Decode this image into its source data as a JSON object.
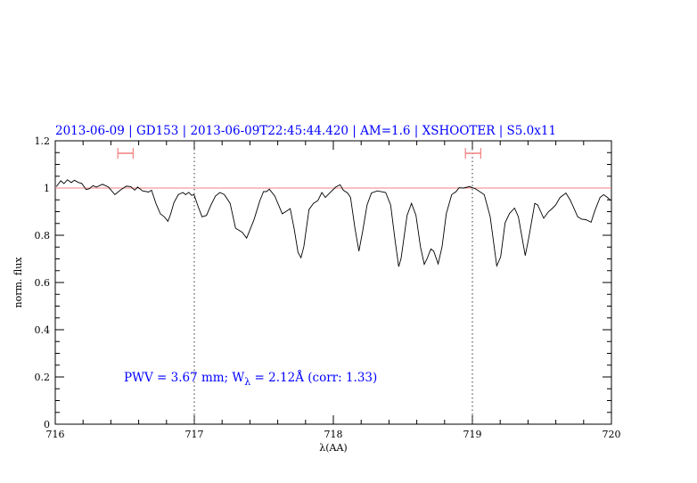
{
  "chart_data": {
    "type": "line",
    "title": "2013-06-09 | GD153 | 2013-06-09T22:45:44.420 | AM=1.6 | XSHOOTER | S5.0x11",
    "xlabel": "λ(AA)",
    "ylabel": "norm. flux",
    "xlim": [
      716,
      720
    ],
    "ylim": [
      0,
      1.2
    ],
    "x_ticks": [
      "716",
      "717",
      "718",
      "719",
      "720"
    ],
    "y_ticks": [
      "0",
      "0.2",
      "0.4",
      "0.6",
      "0.8",
      "1",
      "1.2"
    ],
    "grid": false,
    "reference_line": {
      "y": 1,
      "color": "#f08080"
    },
    "vertical_markers": [
      717,
      719
    ],
    "error_bars": [
      {
        "x_min": 716.45,
        "x_max": 716.56,
        "y": 1.147,
        "color": "#f08080"
      },
      {
        "x_min": 718.95,
        "x_max": 719.06,
        "y": 1.147,
        "color": "#f08080"
      }
    ],
    "annotation": {
      "prefix": "PWV = 3.67 mm; W",
      "subscript": "λ",
      "suffix": " = 2.12Å (corr: 1.33)"
    },
    "series": [
      {
        "color": "#000000",
        "x": [
          716.008,
          716.04,
          716.062,
          716.088,
          716.115,
          716.137,
          716.169,
          716.19,
          716.222,
          716.244,
          716.271,
          716.297,
          716.34,
          716.383,
          716.429,
          716.468,
          716.511,
          716.543,
          716.571,
          716.592,
          716.628,
          716.671,
          716.692,
          716.724,
          716.756,
          716.784,
          716.81,
          716.831,
          716.853,
          716.885,
          716.917,
          716.938,
          716.96,
          716.981,
          716.998,
          717.024,
          717.056,
          717.088,
          717.12,
          717.152,
          717.184,
          717.216,
          717.258,
          717.297,
          717.344,
          717.376,
          717.429,
          717.472,
          717.498,
          717.519,
          717.54,
          717.579,
          717.633,
          717.665,
          717.69,
          717.718,
          717.746,
          717.767,
          717.788,
          717.825,
          717.857,
          717.889,
          717.917,
          717.942,
          717.974,
          718.017,
          718.049,
          718.071,
          718.103,
          718.124,
          718.156,
          718.184,
          718.21,
          718.242,
          718.274,
          718.316,
          718.376,
          718.412,
          718.444,
          718.47,
          718.487,
          718.53,
          718.562,
          718.594,
          718.626,
          718.654,
          718.675,
          718.701,
          718.722,
          718.754,
          718.782,
          718.812,
          718.851,
          718.883,
          718.904,
          718.936,
          718.979,
          719.021,
          719.085,
          719.128,
          719.175,
          719.203,
          719.235,
          719.267,
          719.303,
          719.331,
          719.38,
          719.406,
          719.449,
          719.47,
          719.513,
          719.545,
          719.577,
          719.599,
          719.63,
          719.673,
          719.705,
          719.758,
          719.786,
          719.816,
          719.854,
          719.88,
          719.918,
          719.944,
          719.972,
          719.994
        ],
        "y": [
          1.006,
          1.031,
          1.019,
          1.035,
          1.023,
          1.033,
          1.023,
          1.02,
          0.994,
          0.997,
          1.01,
          1.004,
          1.016,
          1.004,
          0.972,
          0.991,
          1.008,
          1.006,
          0.991,
          1.004,
          0.988,
          0.983,
          0.991,
          0.935,
          0.891,
          0.878,
          0.859,
          0.891,
          0.938,
          0.972,
          0.981,
          0.972,
          0.982,
          0.969,
          0.972,
          0.928,
          0.878,
          0.884,
          0.928,
          0.966,
          0.981,
          0.972,
          0.935,
          0.83,
          0.813,
          0.788,
          0.865,
          0.947,
          0.985,
          0.985,
          0.995,
          0.966,
          0.891,
          0.903,
          0.913,
          0.828,
          0.727,
          0.705,
          0.752,
          0.909,
          0.935,
          0.947,
          0.981,
          0.96,
          0.979,
          1.004,
          1.014,
          0.991,
          0.979,
          0.96,
          0.828,
          0.733,
          0.815,
          0.928,
          0.979,
          0.988,
          0.981,
          0.928,
          0.777,
          0.667,
          0.702,
          0.884,
          0.935,
          0.884,
          0.752,
          0.677,
          0.702,
          0.742,
          0.733,
          0.679,
          0.752,
          0.891,
          0.972,
          0.985,
          1.001,
          1.0,
          1.006,
          0.997,
          0.972,
          0.878,
          0.67,
          0.708,
          0.853,
          0.893,
          0.915,
          0.878,
          0.714,
          0.79,
          0.935,
          0.928,
          0.872,
          0.898,
          0.915,
          0.928,
          0.96,
          0.979,
          0.947,
          0.878,
          0.868,
          0.866,
          0.855,
          0.903,
          0.96,
          0.972,
          0.96,
          0.947
        ]
      }
    ]
  }
}
